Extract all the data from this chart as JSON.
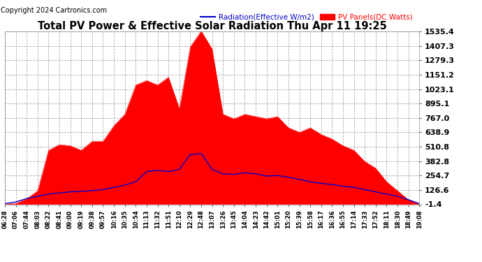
{
  "title": "Total PV Power & Effective Solar Radiation Thu Apr 11 19:25",
  "copyright": "Copyright 2024 Cartronics.com",
  "legend_radiation": "Radiation(Effective W/m2)",
  "legend_pv": "PV Panels(DC Watts)",
  "yticks": [
    -1.4,
    126.6,
    254.7,
    382.8,
    510.8,
    638.9,
    767.0,
    895.1,
    1023.1,
    1151.2,
    1279.3,
    1407.3,
    1535.4
  ],
  "ymin": -1.4,
  "ymax": 1535.4,
  "bg_color": "#ffffff",
  "plot_bg_color": "#ffffff",
  "grid_color": "#aaaaaa",
  "title_color": "#000000",
  "copyright_color": "#000000",
  "radiation_color": "#0000cc",
  "pv_color": "#ff0000",
  "pv_fill_color": "#ff0000",
  "xtick_labels": [
    "06:28",
    "07:06",
    "07:44",
    "08:03",
    "08:22",
    "08:41",
    "09:00",
    "09:19",
    "09:38",
    "09:57",
    "10:16",
    "10:35",
    "10:54",
    "11:13",
    "11:32",
    "11:51",
    "12:10",
    "12:29",
    "12:48",
    "13:07",
    "13:26",
    "13:45",
    "14:04",
    "14:23",
    "14:42",
    "15:01",
    "15:20",
    "15:39",
    "15:58",
    "16:17",
    "16:36",
    "16:55",
    "17:14",
    "17:33",
    "17:52",
    "18:11",
    "18:30",
    "18:49",
    "19:08"
  ],
  "pv_data": [
    2,
    8,
    50,
    120,
    480,
    530,
    520,
    480,
    560,
    560,
    700,
    800,
    1060,
    1100,
    1060,
    1130,
    850,
    1400,
    1540,
    1380,
    800,
    760,
    800,
    780,
    760,
    780,
    680,
    640,
    680,
    620,
    580,
    520,
    480,
    380,
    320,
    200,
    120,
    40,
    2
  ],
  "radiation_data": [
    5,
    20,
    50,
    70,
    90,
    100,
    110,
    115,
    120,
    130,
    150,
    170,
    200,
    290,
    300,
    290,
    310,
    440,
    450,
    310,
    270,
    265,
    280,
    270,
    250,
    255,
    240,
    220,
    200,
    185,
    175,
    160,
    150,
    130,
    110,
    90,
    70,
    40,
    5
  ]
}
